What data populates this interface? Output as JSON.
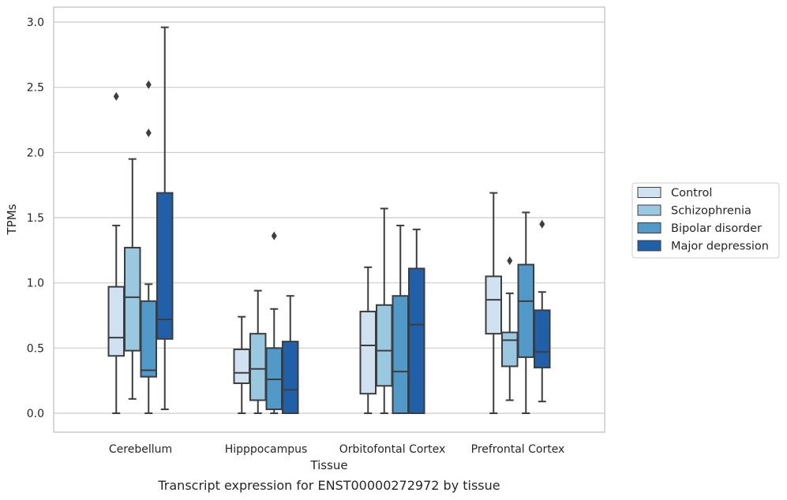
{
  "caption": "Transcript expression for ENST00000272972 by tissue",
  "chart_data": {
    "type": "box",
    "title": "",
    "xlabel": "Tissue",
    "ylabel": "TPMs",
    "ylim": [
      -0.14,
      3.1
    ],
    "yticks": [
      0.0,
      0.5,
      1.0,
      1.5,
      2.0,
      2.5,
      3.0
    ],
    "ytick_labels": [
      "0.0",
      "0.5",
      "1.0",
      "1.5",
      "2.0",
      "2.5",
      "3.0"
    ],
    "grid": true,
    "legend_position": "right",
    "categories": [
      "Cerebellum",
      "Hipppocampus",
      "Orbitofontal Cortex",
      "Prefrontal Cortex"
    ],
    "series": [
      {
        "name": "Control",
        "color": "#d0e1f2",
        "boxes": [
          {
            "whislo": 0.0,
            "q1": 0.44,
            "med": 0.58,
            "q3": 0.97,
            "whishi": 1.44,
            "fliers": [
              2.43
            ]
          },
          {
            "whislo": 0.0,
            "q1": 0.23,
            "med": 0.31,
            "q3": 0.49,
            "whishi": 0.74,
            "fliers": []
          },
          {
            "whislo": 0.0,
            "q1": 0.15,
            "med": 0.52,
            "q3": 0.78,
            "whishi": 1.12,
            "fliers": []
          },
          {
            "whislo": 0.0,
            "q1": 0.61,
            "med": 0.87,
            "q3": 1.05,
            "whishi": 1.69,
            "fliers": []
          }
        ]
      },
      {
        "name": "Schizophrenia",
        "color": "#9ac8e0",
        "boxes": [
          {
            "whislo": 0.11,
            "q1": 0.48,
            "med": 0.89,
            "q3": 1.27,
            "whishi": 1.95,
            "fliers": []
          },
          {
            "whislo": 0.0,
            "q1": 0.1,
            "med": 0.34,
            "q3": 0.61,
            "whishi": 0.94,
            "fliers": []
          },
          {
            "whislo": 0.0,
            "q1": 0.21,
            "med": 0.48,
            "q3": 0.83,
            "whishi": 1.57,
            "fliers": []
          },
          {
            "whislo": 0.1,
            "q1": 0.36,
            "med": 0.56,
            "q3": 0.62,
            "whishi": 0.92,
            "fliers": [
              1.17
            ]
          }
        ]
      },
      {
        "name": "Bipolar disorder",
        "color": "#5199c8",
        "boxes": [
          {
            "whislo": 0.0,
            "q1": 0.28,
            "med": 0.33,
            "q3": 0.86,
            "whishi": 0.99,
            "fliers": [
              2.15,
              2.52
            ]
          },
          {
            "whislo": 0.0,
            "q1": 0.03,
            "med": 0.26,
            "q3": 0.5,
            "whishi": 0.8,
            "fliers": [
              1.36
            ]
          },
          {
            "whislo": 0.0,
            "q1": 0.0,
            "med": 0.32,
            "q3": 0.9,
            "whishi": 1.44,
            "fliers": []
          },
          {
            "whislo": 0.0,
            "q1": 0.43,
            "med": 0.86,
            "q3": 1.14,
            "whishi": 1.54,
            "fliers": []
          }
        ]
      },
      {
        "name": "Major depression",
        "color": "#2060a8",
        "boxes": [
          {
            "whislo": 0.03,
            "q1": 0.57,
            "med": 0.72,
            "q3": 1.69,
            "whishi": 2.96,
            "fliers": []
          },
          {
            "whislo": 0.0,
            "q1": 0.0,
            "med": 0.18,
            "q3": 0.55,
            "whishi": 0.9,
            "fliers": []
          },
          {
            "whislo": 0.0,
            "q1": 0.0,
            "med": 0.68,
            "q3": 1.11,
            "whishi": 1.41,
            "fliers": []
          },
          {
            "whislo": 0.09,
            "q1": 0.35,
            "med": 0.47,
            "q3": 0.79,
            "whishi": 0.93,
            "fliers": [
              1.45
            ]
          }
        ]
      }
    ]
  }
}
